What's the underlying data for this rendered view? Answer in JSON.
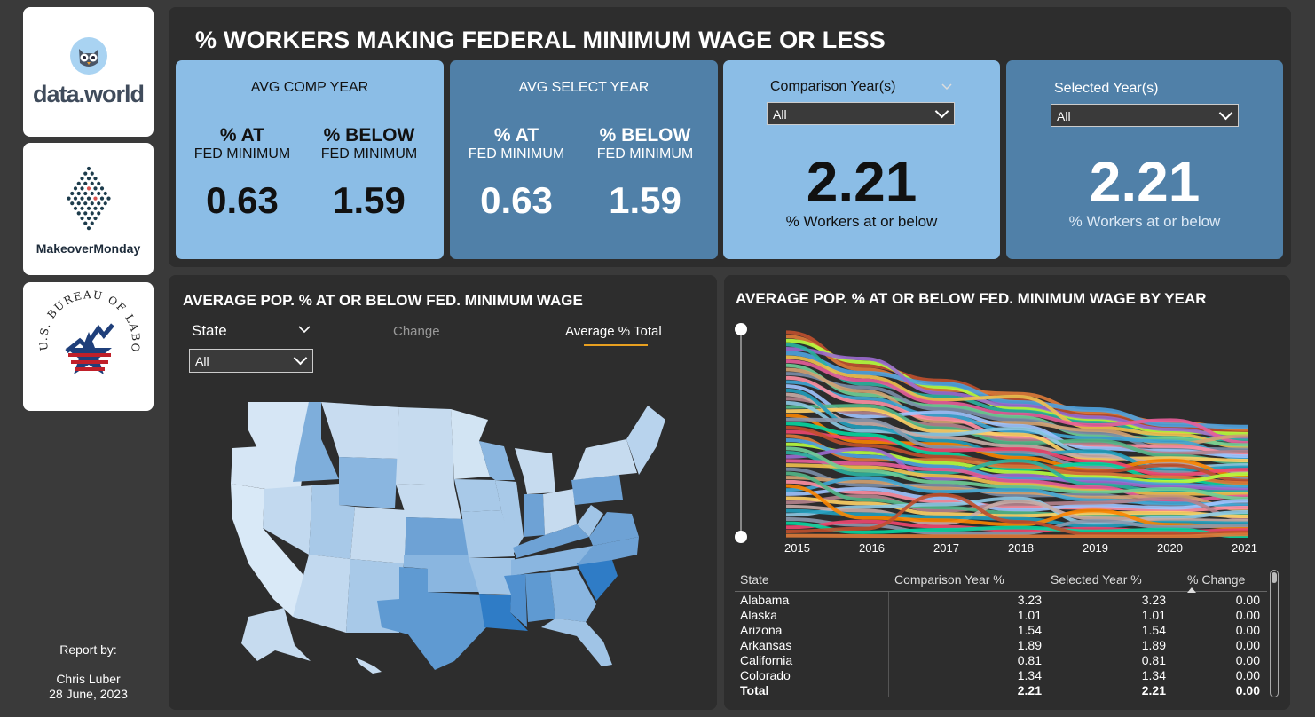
{
  "title": "% WORKERS MAKING FEDERAL MINIMUM WAGE OR LESS",
  "sidebar": {
    "logos": [
      {
        "name": "data.world",
        "text": "data.world"
      },
      {
        "name": "Makeover Monday",
        "text": "MakeoverMonday"
      },
      {
        "name": "BLS seal",
        "text": "U.S. BUREAU OF LABOR STATISTICS"
      }
    ],
    "report_by": {
      "label": "Report by:",
      "author": "Chris Luber",
      "date": "28 June, 2023"
    }
  },
  "kpis": {
    "avg_comp_year": {
      "title": "AVG COMP YEAR",
      "at_big": "% AT",
      "at_sub": "FED MINIMUM",
      "at_val": "0.63",
      "below_big": "% BELOW",
      "below_sub": "FED MINIMUM",
      "below_val": "1.59"
    },
    "avg_select_year": {
      "title": "AVG SELECT YEAR",
      "at_big": "% AT",
      "at_sub": "FED MINIMUM",
      "at_val": "0.63",
      "below_big": "% BELOW",
      "below_sub": "FED MINIMUM",
      "below_val": "1.59"
    },
    "comparison": {
      "label": "Comparison Year(s)",
      "dropdown": "All",
      "value": "2.21",
      "caption": "% Workers at or below"
    },
    "selected": {
      "label": "Selected Year(s)",
      "dropdown": "All",
      "value": "2.21",
      "caption": "% Workers at or below"
    }
  },
  "map_panel": {
    "title": "AVERAGE POP. % AT OR BELOW FED. MINIMUM WAGE",
    "state_label": "State",
    "state_dropdown": "All",
    "tabs": [
      "Change",
      "Average % Total"
    ],
    "active_tab": "Average % Total"
  },
  "bump_panel": {
    "title": "AVERAGE POP. % AT OR BELOW FED. MINIMUM WAGE BY YEAR",
    "years": [
      "2015",
      "2016",
      "2017",
      "2018",
      "2019",
      "2020",
      "2021"
    ]
  },
  "table": {
    "headers": [
      "State",
      "Comparison Year %",
      "Selected Year %",
      "% Change"
    ],
    "rows": [
      [
        "Alabama",
        "3.23",
        "3.23",
        "0.00"
      ],
      [
        "Alaska",
        "1.01",
        "1.01",
        "0.00"
      ],
      [
        "Arizona",
        "1.54",
        "1.54",
        "0.00"
      ],
      [
        "Arkansas",
        "1.89",
        "1.89",
        "0.00"
      ],
      [
        "California",
        "0.81",
        "0.81",
        "0.00"
      ],
      [
        "Colorado",
        "1.34",
        "1.34",
        "0.00"
      ]
    ],
    "total": [
      "Total",
      "2.21",
      "2.21",
      "0.00"
    ]
  },
  "colors": {
    "kpi_light": "#8bbde6",
    "kpi_dark": "#5080a8",
    "panel": "#2d2d2d",
    "accent_tab_underline": "#e8a020"
  }
}
